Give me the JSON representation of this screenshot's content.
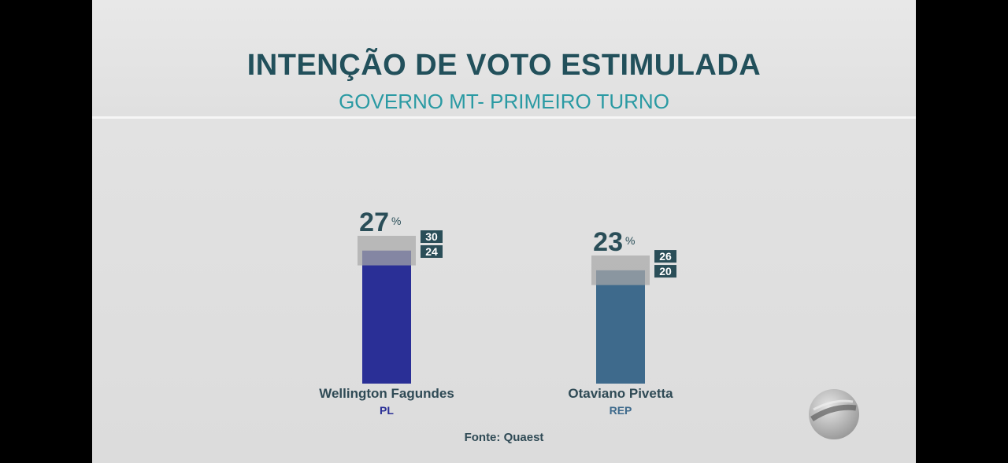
{
  "header": {
    "title": "INTENÇÃO DE VOTO ESTIMULADA",
    "subtitle": "GOVERNO MT- PRIMEIRO TURNO"
  },
  "footer": {
    "source": "Fonte: Quaest"
  },
  "icons": {
    "broadcaster_logo": "tv-globe-logo-icon"
  },
  "chart_data": {
    "type": "bar",
    "title": "INTENÇÃO DE VOTO ESTIMULADA",
    "subtitle": "GOVERNO MT- PRIMEIRO TURNO",
    "unit": "%",
    "categories": [
      "Wellington Fagundes",
      "Otaviano Pivetta"
    ],
    "parties": [
      "PL",
      "REP"
    ],
    "values": [
      27,
      23
    ],
    "upper": [
      30,
      26
    ],
    "lower": [
      24,
      20
    ],
    "colors": [
      "#2a2f96",
      "#3e6a8c"
    ],
    "party_colors": [
      "#2a2f96",
      "#3e6a8c"
    ],
    "ylim": [
      0,
      30
    ],
    "grid": false
  }
}
